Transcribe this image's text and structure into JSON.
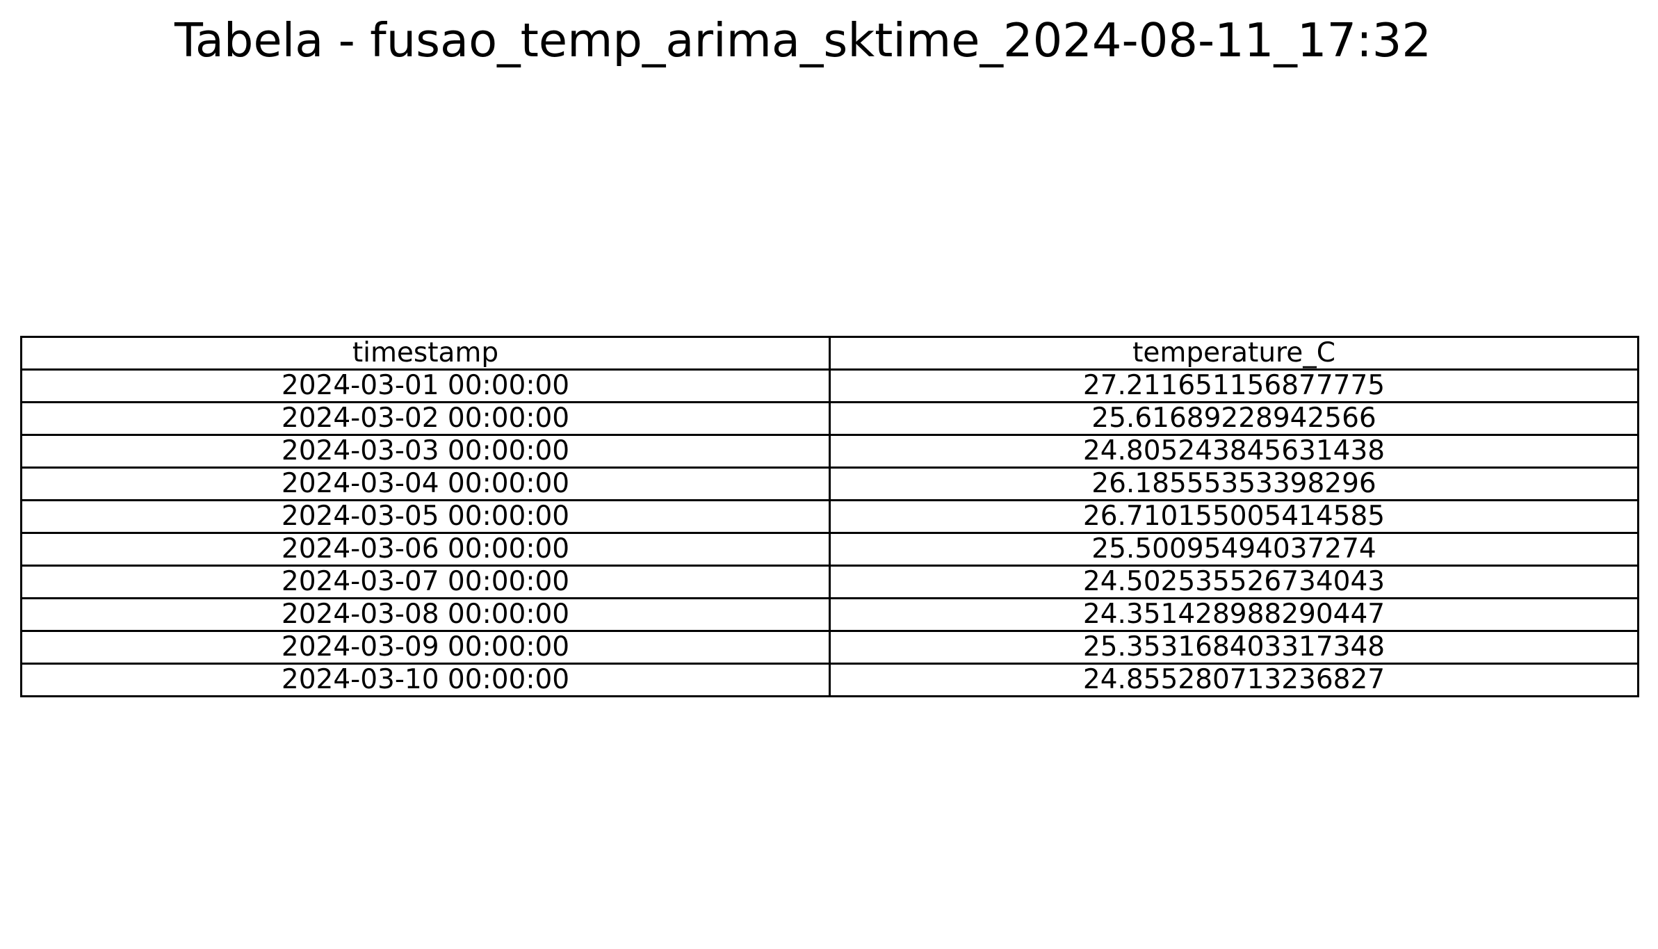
{
  "title": "Tabela - fusao_temp_arima_sktime_2024-08-11_17:32",
  "chart_data": {
    "type": "table",
    "title": "Tabela - fusao_temp_arima_sktime_2024-08-11_17:32",
    "columns": [
      "timestamp",
      "temperature_C"
    ],
    "rows": [
      [
        "2024-03-01 00:00:00",
        "27.211651156877775"
      ],
      [
        "2024-03-02 00:00:00",
        "25.61689228942566"
      ],
      [
        "2024-03-03 00:00:00",
        "24.805243845631438"
      ],
      [
        "2024-03-04 00:00:00",
        "26.18555353398296"
      ],
      [
        "2024-03-05 00:00:00",
        "26.710155005414585"
      ],
      [
        "2024-03-06 00:00:00",
        "25.50095494037274"
      ],
      [
        "2024-03-07 00:00:00",
        "24.502535526734043"
      ],
      [
        "2024-03-08 00:00:00",
        "24.351428988290447"
      ],
      [
        "2024-03-09 00:00:00",
        "25.353168403317348"
      ],
      [
        "2024-03-10 00:00:00",
        "24.855280713236827"
      ]
    ],
    "grid": true
  }
}
